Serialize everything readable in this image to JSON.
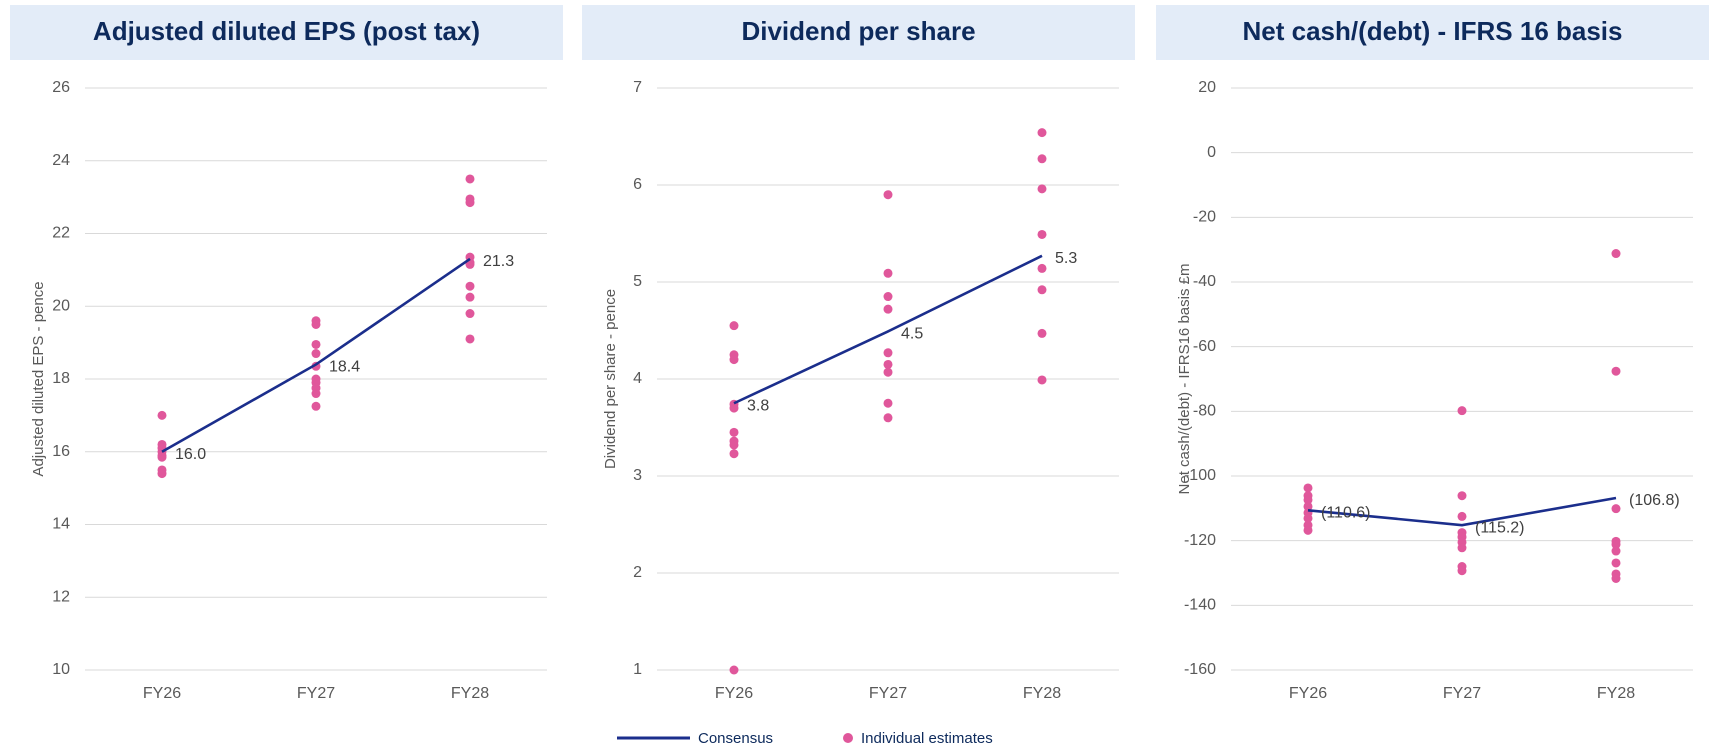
{
  "chart_data": [
    {
      "type": "line",
      "title": "Adjusted diluted EPS (post tax)",
      "y_label": "Adjusted diluted EPS - pence",
      "categories": [
        "FY26",
        "FY27",
        "FY28"
      ],
      "ylim": [
        10,
        26
      ],
      "yticks": [
        10,
        12,
        14,
        16,
        18,
        20,
        22,
        24,
        26
      ],
      "grid": true,
      "series": [
        {
          "name": "Consensus",
          "color": "#1b2e8c",
          "values": [
            16.0,
            18.4,
            21.3
          ],
          "value_labels": [
            "16.0",
            "18.4",
            "21.3"
          ]
        },
        {
          "name": "Individual estimates",
          "type": "scatter",
          "color": "#e0579b",
          "values": [
            [
              17.0,
              16.2,
              16.1,
              16.0,
              15.9,
              15.85,
              15.5,
              15.4
            ],
            [
              19.6,
              19.5,
              18.95,
              18.7,
              18.35,
              18.0,
              17.9,
              17.75,
              17.6,
              17.25
            ],
            [
              23.5,
              22.95,
              22.85,
              21.35,
              21.2,
              21.15,
              20.55,
              20.25,
              19.8,
              19.1
            ]
          ]
        }
      ]
    },
    {
      "type": "line",
      "title": "Dividend per share",
      "y_label": "Dividend per share - pence",
      "categories": [
        "FY26",
        "FY27",
        "FY28"
      ],
      "ylim": [
        1,
        7
      ],
      "yticks": [
        1,
        2,
        3,
        4,
        5,
        6,
        7
      ],
      "grid": true,
      "series": [
        {
          "name": "Consensus",
          "color": "#1b2e8c",
          "values": [
            3.75,
            4.49,
            5.27
          ],
          "value_labels": [
            "3.8",
            "4.5",
            "5.3"
          ]
        },
        {
          "name": "Individual estimates",
          "type": "scatter",
          "color": "#e0579b",
          "values": [
            [
              4.55,
              4.25,
              4.2,
              3.74,
              3.7,
              3.45,
              3.36,
              3.32,
              3.23,
              1.0
            ],
            [
              5.9,
              5.09,
              4.85,
              4.72,
              4.27,
              4.15,
              4.07,
              3.75,
              3.6
            ],
            [
              6.54,
              6.27,
              5.96,
              5.49,
              5.14,
              4.92,
              4.47,
              3.99
            ]
          ]
        }
      ]
    },
    {
      "type": "line",
      "title": "Net cash/(debt) - IFRS 16 basis",
      "y_label": "Net cash/(debt) - IFRS16 basis £m",
      "categories": [
        "FY26",
        "FY27",
        "FY28"
      ],
      "ylim": [
        -160,
        20
      ],
      "yticks": [
        -160,
        -140,
        -120,
        -100,
        -80,
        -60,
        -40,
        -20,
        0,
        20
      ],
      "grid": true,
      "series": [
        {
          "name": "Consensus",
          "color": "#1b2e8c",
          "values": [
            -110.6,
            -115.2,
            -106.8
          ],
          "value_labels": [
            "(110.6)",
            "(115.2)",
            "(106.8)"
          ]
        },
        {
          "name": "Individual estimates",
          "type": "scatter",
          "color": "#e0579b",
          "values": [
            [
              -103.7,
              -106.1,
              -107.4,
              -109.4,
              -111.4,
              -113.1,
              -115.2,
              -116.8
            ],
            [
              -79.8,
              -106.1,
              -112.5,
              -117.5,
              -118.9,
              -120.5,
              -122.2,
              -128.0,
              -129.3
            ],
            [
              -31.2,
              -67.6,
              -110.1,
              -120.2,
              -121.2,
              -123.2,
              -126.9,
              -130.3,
              -131.7
            ]
          ]
        }
      ]
    }
  ]
}
